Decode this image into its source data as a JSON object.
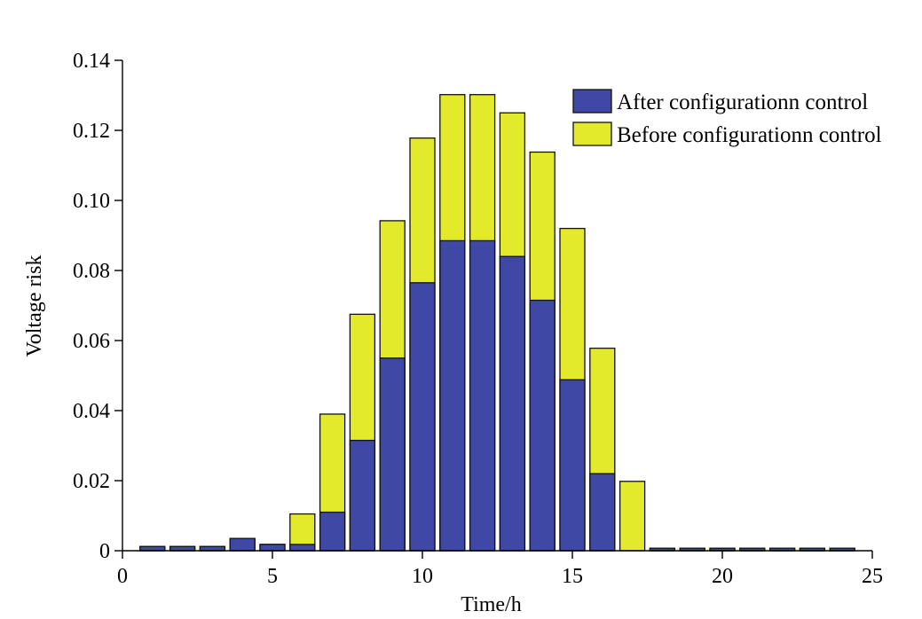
{
  "chart_data": {
    "type": "bar",
    "stacked": false,
    "overlap": "after drawn in front of before",
    "xlabel": "Time/h",
    "ylabel": "Voltage risk",
    "xlim": [
      0,
      25
    ],
    "ylim": [
      0,
      0.14
    ],
    "xticks": [
      0,
      5,
      10,
      15,
      20,
      25
    ],
    "yticks": [
      0,
      0.02,
      0.04,
      0.06,
      0.08,
      0.1,
      0.12,
      0.14
    ],
    "ytick_labels": [
      "0",
      "0.02",
      "0.04",
      "0.06",
      "0.08",
      "0.10",
      "0.12",
      "0.14"
    ],
    "legend_position": "top-right",
    "grid": false,
    "x": [
      1,
      2,
      3,
      4,
      5,
      6,
      7,
      8,
      9,
      10,
      11,
      12,
      13,
      14,
      15,
      16,
      17,
      18,
      19,
      20,
      21,
      22,
      23,
      24
    ],
    "series": [
      {
        "name": "After configurationn control",
        "color": "#3f48a5",
        "values": [
          0.0012,
          0.0012,
          0.0012,
          0.0035,
          0.0018,
          0.0018,
          0.011,
          0.0315,
          0.055,
          0.0765,
          0.0885,
          0.0885,
          0.084,
          0.0715,
          0.0488,
          0.022,
          0,
          0.0007,
          0.0007,
          0.0007,
          0.0007,
          0.0007,
          0.0007,
          0.0007
        ]
      },
      {
        "name": "Before configurationn control",
        "color": "#e3ea2c",
        "values": [
          0.0012,
          0.0012,
          0.0012,
          0.0035,
          0.0018,
          0.0105,
          0.039,
          0.0675,
          0.0942,
          0.1178,
          0.1302,
          0.1302,
          0.125,
          0.1138,
          0.092,
          0.0578,
          0.0198,
          0.0007,
          0.0007,
          0.0007,
          0.0007,
          0.0007,
          0.0007,
          0.0007
        ]
      }
    ]
  }
}
